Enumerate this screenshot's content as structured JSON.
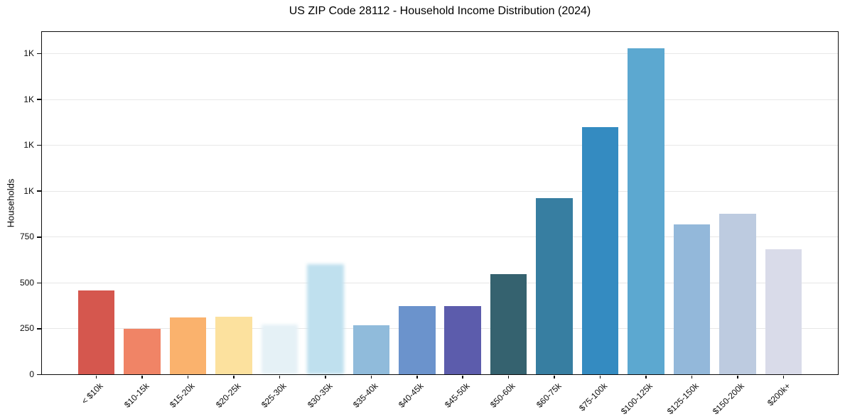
{
  "chart_data": {
    "type": "bar",
    "title": "US ZIP Code 28112 - Household Income Distribution (2024)",
    "xlabel": "",
    "ylabel": "Households",
    "categories": [
      "< $10k",
      "$10-15k",
      "$15-20k",
      "$20-25k",
      "$25-30k",
      "$30-35k",
      "$35-40k",
      "$40-45k",
      "$45-50k",
      "$50-60k",
      "$60-75k",
      "$75-100k",
      "$100-125k",
      "$125-150k",
      "$150-200k",
      "$200k+"
    ],
    "values": [
      460,
      250,
      311,
      316,
      273,
      602,
      270,
      374,
      374,
      548,
      962,
      1350,
      1780,
      820,
      878,
      685
    ],
    "bar_colors": [
      "#d5574e",
      "#f08466",
      "#fab26d",
      "#fce19e",
      "#e5f1f6",
      "#bfe0ee",
      "#90bbdb",
      "#6b93cc",
      "#5c5cac",
      "#35626f",
      "#377ea1",
      "#348bc1",
      "#5ca8d0",
      "#93b8da",
      "#bdcbe0",
      "#d9dbe9"
    ],
    "soft_blur_bar_indices": [
      4,
      5
    ],
    "ylim": [
      0,
      1866
    ],
    "y_ticks": [
      {
        "value": 0,
        "label": "0"
      },
      {
        "value": 250,
        "label": "250"
      },
      {
        "value": 500,
        "label": "500"
      },
      {
        "value": 750,
        "label": "750"
      },
      {
        "value": 1000,
        "label": "1K"
      },
      {
        "value": 1250,
        "label": "1K"
      },
      {
        "value": 1500,
        "label": "1K"
      },
      {
        "value": 1750,
        "label": "1K"
      }
    ],
    "grid": "horizontal-only",
    "legend_position": "none"
  }
}
